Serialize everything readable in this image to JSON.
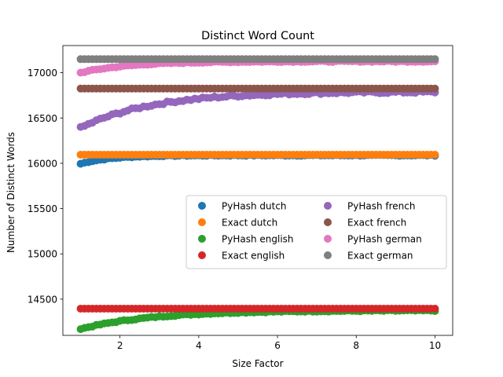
{
  "chart_data": {
    "type": "scatter",
    "title": "Distinct Word Count",
    "xlabel": "Size Factor",
    "ylabel": "Number of Distinct Words",
    "xlim": [
      0.55,
      10.45
    ],
    "ylim": [
      14100,
      17300
    ],
    "xticks": [
      2,
      4,
      6,
      8,
      10
    ],
    "xtick_labels": [
      "2",
      "4",
      "6",
      "8",
      "10"
    ],
    "yticks": [
      14500,
      15000,
      15500,
      16000,
      16500,
      17000
    ],
    "ytick_labels": [
      "14500",
      "15000",
      "15500",
      "16000",
      "16500",
      "17000"
    ],
    "x_range": [
      1.0,
      10.0
    ],
    "x_step": 0.1,
    "grid": false,
    "legend": {
      "placement": "center-right",
      "columns": 2
    },
    "series": [
      {
        "name": "PyHash dutch",
        "color": "#1f77b4",
        "start": 15995,
        "end": 16088,
        "rate": 1.3,
        "noise": 5
      },
      {
        "name": "Exact dutch",
        "color": "#ff7f0e",
        "start": 16095,
        "end": 16095,
        "rate": 0,
        "noise": 0
      },
      {
        "name": "PyHash english",
        "color": "#2ca02c",
        "start": 14170,
        "end": 14375,
        "rate": 0.55,
        "noise": 6
      },
      {
        "name": "Exact english",
        "color": "#d62728",
        "start": 14395,
        "end": 14395,
        "rate": 0,
        "noise": 0
      },
      {
        "name": "PyHash french",
        "color": "#9467bd",
        "start": 16390,
        "end": 16790,
        "rate": 0.55,
        "noise": 12
      },
      {
        "name": "Exact french",
        "color": "#8c564b",
        "start": 16825,
        "end": 16825,
        "rate": 0,
        "noise": 0
      },
      {
        "name": "PyHash german",
        "color": "#e377c2",
        "start": 17000,
        "end": 17125,
        "rate": 0.8,
        "noise": 6
      },
      {
        "name": "Exact german",
        "color": "#7f7f7f",
        "start": 17150,
        "end": 17150,
        "rate": 0,
        "noise": 0
      }
    ]
  }
}
